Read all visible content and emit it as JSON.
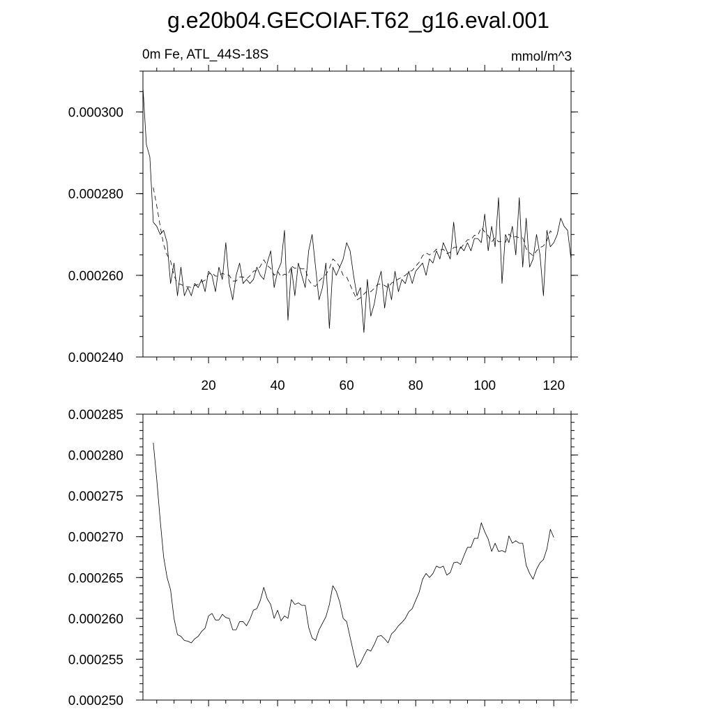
{
  "title": "g.e20b04.GECOIAF.T62_g16.eval.001",
  "chart_data": [
    {
      "type": "line",
      "title": "",
      "left_label": "0m Fe, ATL_44S-18S",
      "right_label": "mmol/m^3",
      "xlim": [
        1,
        125
      ],
      "ylim": [
        0.00024,
        0.00031
      ],
      "x_ticks": [
        "20",
        "40",
        "60",
        "80",
        "100",
        "120"
      ],
      "y_ticks": [
        "0.000240",
        "0.000260",
        "0.000280",
        "0.000300"
      ],
      "series": [
        {
          "style": "solid",
          "x_start": 1,
          "values": [
            0.000306,
            0.000292,
            0.000289,
            0.000273,
            0.000272,
            0.00027,
            0.000271,
            0.000268,
            0.000258,
            0.000263,
            0.000255,
            0.000262,
            0.000255,
            0.000257,
            0.000255,
            0.000258,
            0.000257,
            0.000259,
            0.000256,
            0.000261,
            0.00026,
            0.000256,
            0.000262,
            0.000259,
            0.000268,
            0.000258,
            0.000254,
            0.00026,
            0.000263,
            0.000258,
            0.000259,
            0.000258,
            0.000259,
            0.000262,
            0.00026,
            0.000259,
            0.000263,
            0.000266,
            0.000257,
            0.000261,
            0.000263,
            0.000271,
            0.000249,
            0.000262,
            0.000255,
            0.000263,
            0.00026,
            0.000257,
            0.000266,
            0.00027,
            0.000262,
            0.000254,
            0.000257,
            0.000263,
            0.000247,
            0.000262,
            0.00026,
            0.000262,
            0.000264,
            0.000268,
            0.000266,
            0.00026,
            0.000255,
            0.000257,
            0.000246,
            0.000259,
            0.00025,
            0.000253,
            0.000258,
            0.000261,
            0.000252,
            0.000258,
            0.000254,
            0.000261,
            0.000256,
            0.000259,
            0.000258,
            0.000261,
            0.000258,
            0.000261,
            0.000262,
            0.000263,
            0.00026,
            0.000264,
            0.000263,
            0.000266,
            0.000264,
            0.000268,
            0.000266,
            0.000264,
            0.000273,
            0.000265,
            0.000267,
            0.000266,
            0.000268,
            0.000266,
            0.000269,
            0.000269,
            0.000268,
            0.000275,
            0.000266,
            0.000272,
            0.000267,
            0.000279,
            0.000258,
            0.00027,
            0.000268,
            0.000272,
            0.000265,
            0.000279,
            0.000262,
            0.000274,
            0.000262,
            0.000264,
            0.00027,
            0.000265,
            0.000255,
            0.000271,
            0.000267,
            0.000268,
            0.00027,
            0.000274,
            0.000272,
            0.000271,
            0.000264
          ]
        },
        {
          "style": "dashed",
          "x_start": 4,
          "values": [
            0.0002815,
            0.000277,
            0.000272,
            0.0002675,
            0.000265,
            0.0002635,
            0.00026,
            0.000258,
            0.0002578,
            0.0002573,
            0.0002572,
            0.000257,
            0.0002575,
            0.0002578,
            0.0002584,
            0.0002588,
            0.0002603,
            0.0002606,
            0.0002598,
            0.0002598,
            0.0002605,
            0.0002601,
            0.00026,
            0.0002586,
            0.0002586,
            0.0002596,
            0.0002596,
            0.0002591,
            0.0002599,
            0.000261,
            0.0002612,
            0.0002622,
            0.0002638,
            0.0002624,
            0.0002617,
            0.00026,
            0.000261,
            0.0002597,
            0.0002603,
            0.00026,
            0.0002623,
            0.0002617,
            0.0002619,
            0.0002616,
            0.0002616,
            0.0002589,
            0.0002576,
            0.0002573,
            0.0002586,
            0.0002594,
            0.0002602,
            0.0002617,
            0.000264,
            0.0002633,
            0.000262,
            0.00026,
            0.0002596,
            0.0002577,
            0.0002558,
            0.000254,
            0.0002545,
            0.0002554,
            0.0002562,
            0.000256,
            0.0002568,
            0.0002578,
            0.0002579,
            0.0002575,
            0.000257,
            0.0002581,
            0.0002585,
            0.0002591,
            0.0002595,
            0.00026,
            0.0002608,
            0.0002612,
            0.0002622,
            0.0002632,
            0.0002648,
            0.0002655,
            0.000265,
            0.0002655,
            0.0002664,
            0.0002662,
            0.0002664,
            0.0002653,
            0.0002656,
            0.0002668,
            0.0002669,
            0.0002666,
            0.0002677,
            0.0002687,
            0.0002687,
            0.0002698,
            0.0002698,
            0.0002717,
            0.0002706,
            0.0002697,
            0.0002682,
            0.0002692,
            0.0002682,
            0.0002683,
            0.0002681,
            0.0002701,
            0.0002692,
            0.0002695,
            0.0002692,
            0.0002692,
            0.0002665,
            0.0002655,
            0.0002648,
            0.000266,
            0.0002668,
            0.0002672,
            0.0002685,
            0.0002709,
            0.0002699
          ]
        }
      ]
    },
    {
      "type": "line",
      "title": "",
      "xlim": [
        1,
        125
      ],
      "ylim": [
        0.00025,
        0.000285
      ],
      "x_ticks": [],
      "y_ticks": [
        "0.000250",
        "0.000255",
        "0.000260",
        "0.000265",
        "0.000270",
        "0.000275",
        "0.000280",
        "0.000285"
      ],
      "series": [
        {
          "style": "solid",
          "x_start": 4,
          "values": [
            0.0002815,
            0.000277,
            0.000272,
            0.0002675,
            0.000265,
            0.0002635,
            0.00026,
            0.000258,
            0.0002578,
            0.0002573,
            0.0002572,
            0.000257,
            0.0002575,
            0.0002578,
            0.0002584,
            0.0002588,
            0.0002603,
            0.0002606,
            0.0002598,
            0.0002598,
            0.0002605,
            0.0002601,
            0.00026,
            0.0002586,
            0.0002586,
            0.0002596,
            0.0002596,
            0.0002591,
            0.0002599,
            0.000261,
            0.0002612,
            0.0002622,
            0.0002638,
            0.0002624,
            0.0002617,
            0.00026,
            0.000261,
            0.0002597,
            0.0002603,
            0.00026,
            0.0002623,
            0.0002617,
            0.0002619,
            0.0002616,
            0.0002616,
            0.0002589,
            0.0002576,
            0.0002573,
            0.0002586,
            0.0002594,
            0.0002602,
            0.0002617,
            0.000264,
            0.0002633,
            0.000262,
            0.00026,
            0.0002596,
            0.0002577,
            0.0002558,
            0.000254,
            0.0002545,
            0.0002554,
            0.0002562,
            0.000256,
            0.0002568,
            0.0002578,
            0.0002579,
            0.0002575,
            0.000257,
            0.0002581,
            0.0002585,
            0.0002591,
            0.0002595,
            0.00026,
            0.0002608,
            0.0002612,
            0.0002622,
            0.0002632,
            0.0002648,
            0.0002655,
            0.000265,
            0.0002655,
            0.0002664,
            0.0002662,
            0.0002664,
            0.0002653,
            0.0002656,
            0.0002668,
            0.0002669,
            0.0002666,
            0.0002677,
            0.0002687,
            0.0002687,
            0.0002698,
            0.0002698,
            0.0002717,
            0.0002706,
            0.0002697,
            0.0002682,
            0.0002692,
            0.0002682,
            0.0002683,
            0.0002681,
            0.0002701,
            0.0002692,
            0.0002695,
            0.0002692,
            0.0002692,
            0.0002665,
            0.0002655,
            0.0002648,
            0.000266,
            0.0002668,
            0.0002672,
            0.0002685,
            0.0002709,
            0.0002699
          ]
        }
      ]
    }
  ]
}
